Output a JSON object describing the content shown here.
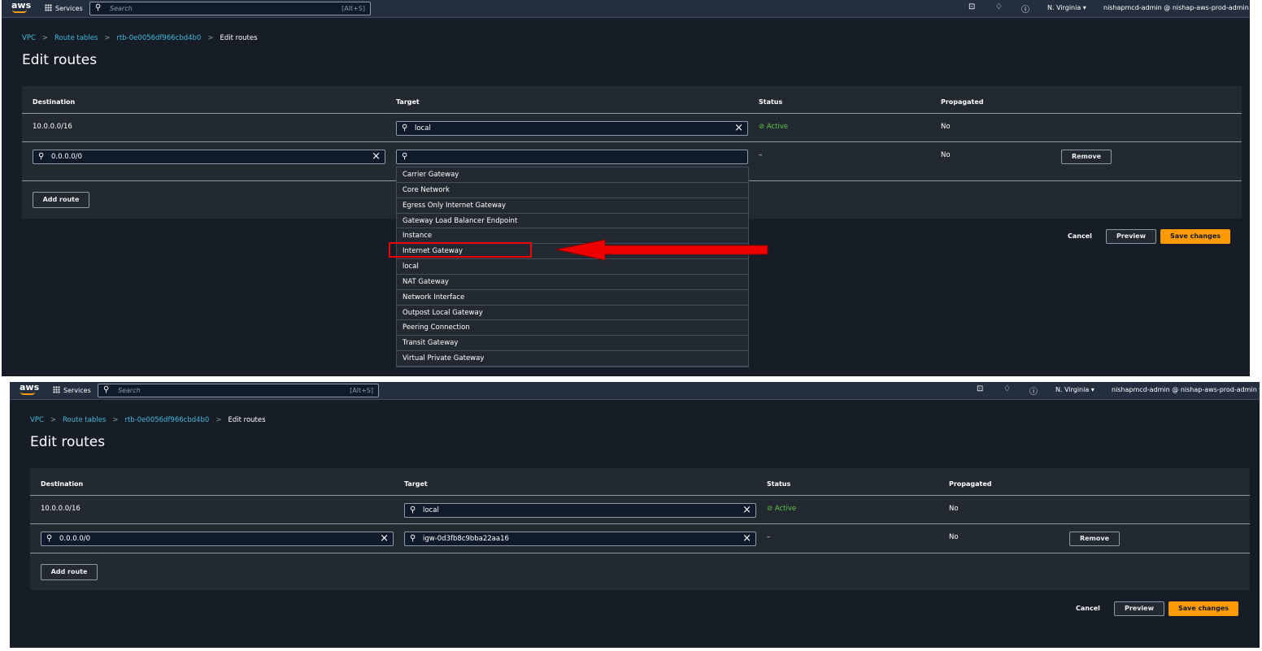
{
  "panels": [
    {
      "nav": {
        "logo": "aws",
        "services": "Services",
        "search_placeholder": "Search",
        "search_shortcut": "[Alt+S]",
        "region": "N. Virginia ▾",
        "account": "nishapmcd-admin @ nishap-aws-prod-admin ▾"
      },
      "breadcrumb": [
        "VPC",
        "Route tables",
        "rtb-0e0056df966cbd4b0",
        "Edit routes"
      ],
      "title": "Edit routes",
      "columns": [
        "Destination",
        "Target",
        "Status",
        "Propagated"
      ],
      "rows": [
        {
          "destination": "10.0.0.0/16",
          "target": "local",
          "status": "Active",
          "propagated": "No"
        },
        {
          "destination": "0.0.0.0/0",
          "target": "",
          "status": "–",
          "propagated": "No",
          "remove": "Remove"
        }
      ],
      "add_route": "Add route",
      "cancel": "Cancel",
      "preview": "Preview",
      "save": "Save changes",
      "dropdown": [
        "Carrier Gateway",
        "Core Network",
        "Egress Only Internet Gateway",
        "Gateway Load Balancer Endpoint",
        "Instance",
        "Internet Gateway",
        "local",
        "NAT Gateway",
        "Network Interface",
        "Outpost Local Gateway",
        "Peering Connection",
        "Transit Gateway",
        "Virtual Private Gateway"
      ],
      "highlighted": "Internet Gateway",
      "annotation_color": "#e00000"
    },
    {
      "nav": {
        "logo": "aws",
        "services": "Services",
        "search_placeholder": "Search",
        "search_shortcut": "[Alt+S]",
        "region": "N. Virginia ▾",
        "account": "nishapmcd-admin @ nishap-aws-prod-admin ▾"
      },
      "breadcrumb": [
        "VPC",
        "Route tables",
        "rtb-0e0056df966cbd4b0",
        "Edit routes"
      ],
      "title": "Edit routes",
      "columns": [
        "Destination",
        "Target",
        "Status",
        "Propagated"
      ],
      "rows": [
        {
          "destination": "10.0.0.0/16",
          "target": "local",
          "status": "Active",
          "propagated": "No"
        },
        {
          "destination": "0.0.0.0/0",
          "target": "igw-0d3fb8c9bba22aa16",
          "status": "–",
          "propagated": "No",
          "remove": "Remove"
        }
      ],
      "add_route": "Add route",
      "cancel": "Cancel",
      "preview": "Preview",
      "save": "Save changes"
    }
  ],
  "colors": {
    "accent": "#ff9900",
    "link": "#44b9d6",
    "active": "#5ec64b"
  }
}
